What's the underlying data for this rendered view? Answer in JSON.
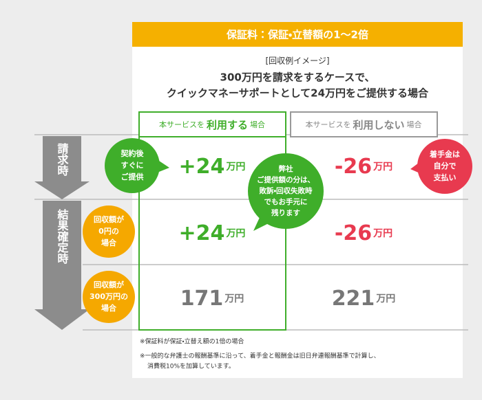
{
  "header": {
    "title": "保証料：保証・立替額の1～2倍"
  },
  "intro": {
    "label": "[回収例イメージ]",
    "lines": [
      "300万円を請求をするケースで、",
      "クイックマネーサポートとして24万円をご提供する場合"
    ]
  },
  "columns": [
    {
      "prefix": "本サービスを",
      "emphasis": "利用する",
      "suffix": "場合"
    },
    {
      "prefix": "本サービスを",
      "emphasis": "利用しない",
      "suffix": "場合"
    }
  ],
  "phases": [
    "請求時",
    "結果確定時"
  ],
  "conditions": [
    [
      "回収額が",
      "0円の",
      "場合"
    ],
    [
      "回収額が",
      "300万円の",
      "場合"
    ]
  ],
  "rows": [
    [
      {
        "amount": "+24",
        "unit": "万円"
      },
      {
        "amount": "-26",
        "unit": "万円"
      }
    ],
    [
      {
        "amount": "+24",
        "unit": "万円"
      },
      {
        "amount": "-26",
        "unit": "万円"
      }
    ],
    [
      {
        "amount": "171",
        "unit": "万円"
      },
      {
        "amount": "221",
        "unit": "万円"
      }
    ]
  ],
  "callouts": {
    "use": [
      "契約後",
      "すぐに",
      "ご提供"
    ],
    "keep": [
      "弊社",
      "ご提供額の分は、",
      "敗訴・回収失敗時",
      "でもお手元に",
      "残ります"
    ],
    "no_use": [
      "着手金は",
      "自分で",
      "支払い"
    ]
  },
  "notes": [
    "※保証料が保証・立替え額の1倍の場合",
    "※一般的な弁護士の報酬基準に沿って、着手金と報酬金は旧日弁連報酬基準で計算し、",
    "消費税10%を加算しています。"
  ]
}
